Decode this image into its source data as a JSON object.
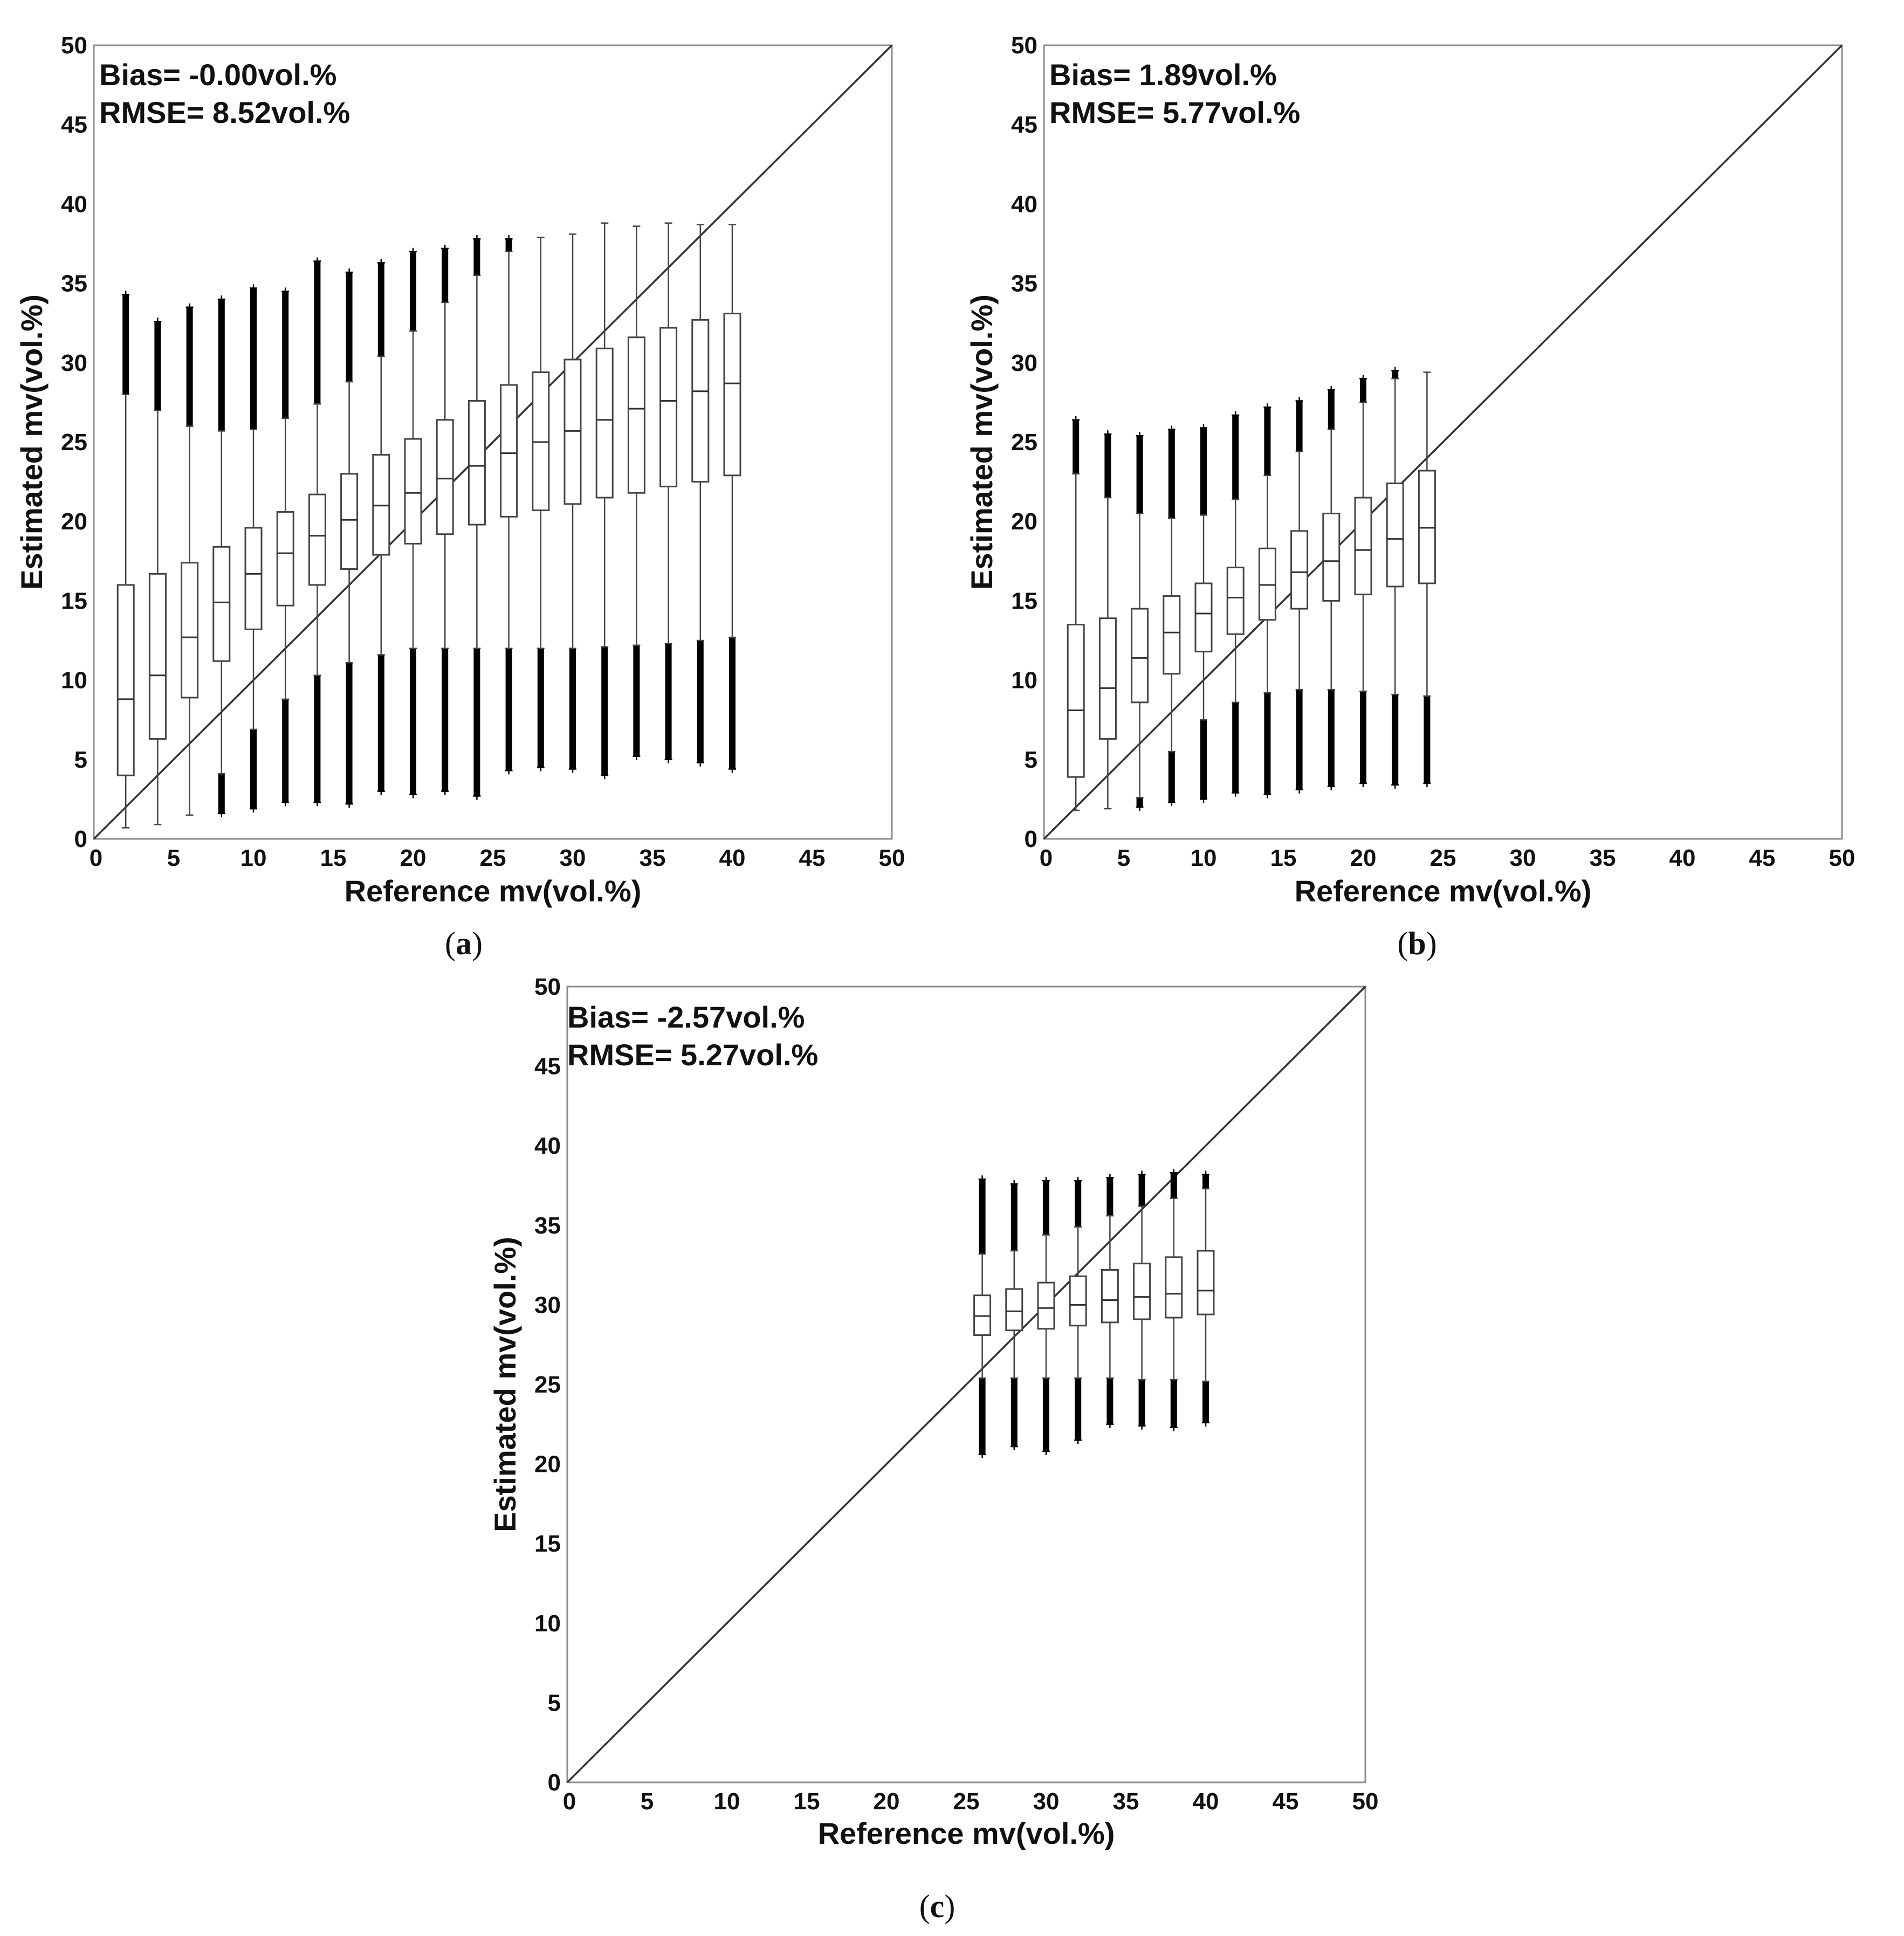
{
  "figure": {
    "panels": [
      {
        "id": "a",
        "caption_letter": "a",
        "caption_open": "(",
        "caption_close": ")",
        "bias_text": "Bias= -0.00vol.%",
        "rmse_text": "RMSE= 8.52vol.%"
      },
      {
        "id": "b",
        "caption_letter": "b",
        "caption_open": "(",
        "caption_close": ")",
        "bias_text": "Bias= 1.89vol.%",
        "rmse_text": "RMSE= 5.77vol.%"
      },
      {
        "id": "c",
        "caption_letter": "c",
        "caption_open": "(",
        "caption_close": ")",
        "bias_text": "Bias= -2.57vol.%",
        "rmse_text": "RMSE= 5.27vol.%"
      }
    ]
  },
  "chart_data": [
    {
      "type": "boxplot",
      "panel": "a",
      "xlabel": "Reference mv(vol.%)",
      "ylabel": "Estimated mv(vol.%)",
      "xlim": [
        0,
        50
      ],
      "ylim": [
        0,
        50
      ],
      "xticks": [
        0,
        5,
        10,
        15,
        20,
        25,
        30,
        35,
        40,
        45,
        50
      ],
      "yticks": [
        0,
        5,
        10,
        15,
        20,
        25,
        30,
        35,
        40,
        45,
        50
      ],
      "reference_line": "1:1",
      "boxes": [
        {
          "x": 2,
          "q1": 4.0,
          "median": 8.8,
          "q3": 16.0,
          "wlo": 0.7,
          "whi": 28.0,
          "out_hi": [
            28.0,
            34.3
          ],
          "out_lo": null
        },
        {
          "x": 4,
          "q1": 6.3,
          "median": 10.3,
          "q3": 16.7,
          "wlo": 0.9,
          "whi": 27.0,
          "out_hi": [
            27.0,
            32.6
          ],
          "out_lo": null
        },
        {
          "x": 6,
          "q1": 8.9,
          "median": 12.7,
          "q3": 17.4,
          "wlo": 1.5,
          "whi": 26.0,
          "out_hi": [
            26.0,
            33.5
          ],
          "out_lo": null
        },
        {
          "x": 8,
          "q1": 11.2,
          "median": 14.9,
          "q3": 18.4,
          "wlo": 4.1,
          "whi": 25.7,
          "out_hi": [
            25.7,
            34.0
          ],
          "out_lo": [
            1.6,
            4.1
          ]
        },
        {
          "x": 10,
          "q1": 13.2,
          "median": 16.7,
          "q3": 19.6,
          "wlo": 6.9,
          "whi": 25.8,
          "out_hi": [
            25.8,
            34.7
          ],
          "out_lo": [
            1.9,
            6.9
          ]
        },
        {
          "x": 12,
          "q1": 14.7,
          "median": 18.0,
          "q3": 20.6,
          "wlo": 8.8,
          "whi": 26.5,
          "out_hi": [
            26.5,
            34.5
          ],
          "out_lo": [
            2.3,
            8.8
          ]
        },
        {
          "x": 14,
          "q1": 16.0,
          "median": 19.1,
          "q3": 21.7,
          "wlo": 10.3,
          "whi": 27.4,
          "out_hi": [
            27.4,
            36.4
          ],
          "out_lo": [
            2.3,
            10.3
          ]
        },
        {
          "x": 16,
          "q1": 17.0,
          "median": 20.1,
          "q3": 23.0,
          "wlo": 11.1,
          "whi": 28.8,
          "out_hi": [
            28.8,
            35.7
          ],
          "out_lo": [
            2.2,
            11.1
          ]
        },
        {
          "x": 18,
          "q1": 17.9,
          "median": 21.0,
          "q3": 24.2,
          "wlo": 11.6,
          "whi": 30.4,
          "out_hi": [
            30.4,
            36.3
          ],
          "out_lo": [
            3.0,
            11.6
          ]
        },
        {
          "x": 20,
          "q1": 18.6,
          "median": 21.8,
          "q3": 25.2,
          "wlo": 12.0,
          "whi": 32.0,
          "out_hi": [
            32.0,
            37.0
          ],
          "out_lo": [
            2.8,
            12.0
          ]
        },
        {
          "x": 22,
          "q1": 19.2,
          "median": 22.7,
          "q3": 26.4,
          "wlo": 12.0,
          "whi": 33.8,
          "out_hi": [
            33.8,
            37.2
          ],
          "out_lo": [
            3.0,
            12.0
          ]
        },
        {
          "x": 24,
          "q1": 19.8,
          "median": 23.5,
          "q3": 27.6,
          "wlo": 12.0,
          "whi": 35.5,
          "out_hi": [
            35.5,
            37.8
          ],
          "out_lo": [
            2.7,
            12.0
          ]
        },
        {
          "x": 26,
          "q1": 20.3,
          "median": 24.3,
          "q3": 28.6,
          "wlo": 12.0,
          "whi": 37.0,
          "out_hi": [
            37.0,
            37.8
          ],
          "out_lo": [
            4.3,
            12.0
          ]
        },
        {
          "x": 28,
          "q1": 20.7,
          "median": 25.0,
          "q3": 29.4,
          "wlo": 12.0,
          "whi": 37.9,
          "out_hi": null,
          "out_lo": [
            4.5,
            12.0
          ]
        },
        {
          "x": 30,
          "q1": 21.1,
          "median": 25.7,
          "q3": 30.2,
          "wlo": 12.0,
          "whi": 38.1,
          "out_hi": null,
          "out_lo": [
            4.4,
            12.0
          ]
        },
        {
          "x": 32,
          "q1": 21.5,
          "median": 26.4,
          "q3": 30.9,
          "wlo": 12.1,
          "whi": 38.8,
          "out_hi": null,
          "out_lo": [
            4.0,
            12.1
          ]
        },
        {
          "x": 34,
          "q1": 21.8,
          "median": 27.1,
          "q3": 31.6,
          "wlo": 12.2,
          "whi": 38.6,
          "out_hi": null,
          "out_lo": [
            5.2,
            12.2
          ]
        },
        {
          "x": 36,
          "q1": 22.2,
          "median": 27.6,
          "q3": 32.2,
          "wlo": 12.3,
          "whi": 38.8,
          "out_hi": null,
          "out_lo": [
            5.0,
            12.3
          ]
        },
        {
          "x": 38,
          "q1": 22.5,
          "median": 28.2,
          "q3": 32.7,
          "wlo": 12.5,
          "whi": 38.7,
          "out_hi": null,
          "out_lo": [
            4.8,
            12.5
          ]
        },
        {
          "x": 40,
          "q1": 22.9,
          "median": 28.7,
          "q3": 33.1,
          "wlo": 12.7,
          "whi": 38.7,
          "out_hi": null,
          "out_lo": [
            4.4,
            12.7
          ]
        }
      ]
    },
    {
      "type": "boxplot",
      "panel": "b",
      "xlabel": "Reference mv(vol.%)",
      "ylabel": "Estimated mv(vol.%)",
      "xlim": [
        0,
        50
      ],
      "ylim": [
        0,
        50
      ],
      "xticks": [
        0,
        5,
        10,
        15,
        20,
        25,
        30,
        35,
        40,
        45,
        50
      ],
      "yticks": [
        0,
        5,
        10,
        15,
        20,
        25,
        30,
        35,
        40,
        45,
        50
      ],
      "reference_line": "1:1",
      "boxes": [
        {
          "x": 2,
          "q1": 3.9,
          "median": 8.1,
          "q3": 13.5,
          "wlo": 1.8,
          "whi": 23.0,
          "out_hi": [
            23.0,
            26.4
          ],
          "out_lo": null
        },
        {
          "x": 4,
          "q1": 6.3,
          "median": 9.5,
          "q3": 13.9,
          "wlo": 1.9,
          "whi": 21.5,
          "out_hi": [
            21.5,
            25.5
          ],
          "out_lo": null
        },
        {
          "x": 6,
          "q1": 8.6,
          "median": 11.4,
          "q3": 14.5,
          "wlo": 2.6,
          "whi": 20.5,
          "out_hi": [
            20.5,
            25.4
          ],
          "out_lo": [
            2.0,
            2.6
          ]
        },
        {
          "x": 8,
          "q1": 10.4,
          "median": 13.0,
          "q3": 15.3,
          "wlo": 5.5,
          "whi": 20.2,
          "out_hi": [
            20.2,
            25.8
          ],
          "out_lo": [
            2.3,
            5.5
          ]
        },
        {
          "x": 10,
          "q1": 11.8,
          "median": 14.2,
          "q3": 16.1,
          "wlo": 7.5,
          "whi": 20.4,
          "out_hi": [
            20.4,
            25.9
          ],
          "out_lo": [
            2.5,
            7.5
          ]
        },
        {
          "x": 12,
          "q1": 12.9,
          "median": 15.2,
          "q3": 17.1,
          "wlo": 8.6,
          "whi": 21.4,
          "out_hi": [
            21.4,
            26.7
          ],
          "out_lo": [
            2.9,
            8.6
          ]
        },
        {
          "x": 14,
          "q1": 13.8,
          "median": 16.0,
          "q3": 18.3,
          "wlo": 9.2,
          "whi": 22.9,
          "out_hi": [
            22.9,
            27.2
          ],
          "out_lo": [
            2.8,
            9.2
          ]
        },
        {
          "x": 16,
          "q1": 14.5,
          "median": 16.8,
          "q3": 19.4,
          "wlo": 9.4,
          "whi": 24.4,
          "out_hi": [
            24.4,
            27.6
          ],
          "out_lo": [
            3.1,
            9.4
          ]
        },
        {
          "x": 18,
          "q1": 15.0,
          "median": 17.5,
          "q3": 20.5,
          "wlo": 9.4,
          "whi": 25.8,
          "out_hi": [
            25.8,
            28.3
          ],
          "out_lo": [
            3.3,
            9.4
          ]
        },
        {
          "x": 20,
          "q1": 15.4,
          "median": 18.2,
          "q3": 21.5,
          "wlo": 9.3,
          "whi": 27.5,
          "out_hi": [
            27.5,
            29.0
          ],
          "out_lo": [
            3.5,
            9.3
          ]
        },
        {
          "x": 22,
          "q1": 15.9,
          "median": 18.9,
          "q3": 22.4,
          "wlo": 9.1,
          "whi": 29.0,
          "out_hi": [
            29.0,
            29.5
          ],
          "out_lo": [
            3.4,
            9.1
          ]
        },
        {
          "x": 24,
          "q1": 16.1,
          "median": 19.6,
          "q3": 23.2,
          "wlo": 9.0,
          "whi": 29.4,
          "out_hi": null,
          "out_lo": [
            3.5,
            9.0
          ]
        }
      ]
    },
    {
      "type": "boxplot",
      "panel": "c",
      "xlabel": "Reference mv(vol.%)",
      "ylabel": "Estimated mv(vol.%)",
      "xlim": [
        0,
        50
      ],
      "ylim": [
        0,
        50
      ],
      "xticks": [
        0,
        5,
        10,
        15,
        20,
        25,
        30,
        35,
        40,
        45,
        50
      ],
      "yticks": [
        0,
        5,
        10,
        15,
        20,
        25,
        30,
        35,
        40,
        45,
        50
      ],
      "reference_line": "1:1",
      "boxes": [
        {
          "x": 26,
          "q1": 28.1,
          "median": 29.3,
          "q3": 30.6,
          "wlo": 25.4,
          "whi": 33.2,
          "out_hi": [
            33.2,
            37.9
          ],
          "out_lo": [
            20.6,
            25.4
          ]
        },
        {
          "x": 28,
          "q1": 28.4,
          "median": 29.6,
          "q3": 31.0,
          "wlo": 25.4,
          "whi": 33.4,
          "out_hi": [
            33.4,
            37.6
          ],
          "out_lo": [
            21.1,
            25.4
          ]
        },
        {
          "x": 30,
          "q1": 28.5,
          "median": 29.8,
          "q3": 31.4,
          "wlo": 25.4,
          "whi": 34.4,
          "out_hi": [
            34.4,
            37.8
          ],
          "out_lo": [
            20.8,
            25.4
          ]
        },
        {
          "x": 32,
          "q1": 28.7,
          "median": 30.0,
          "q3": 31.8,
          "wlo": 25.4,
          "whi": 34.9,
          "out_hi": [
            34.9,
            37.8
          ],
          "out_lo": [
            21.5,
            25.4
          ]
        },
        {
          "x": 34,
          "q1": 28.9,
          "median": 30.3,
          "q3": 32.2,
          "wlo": 25.4,
          "whi": 35.6,
          "out_hi": [
            35.6,
            38.0
          ],
          "out_lo": [
            22.5,
            25.4
          ]
        },
        {
          "x": 36,
          "q1": 29.1,
          "median": 30.5,
          "q3": 32.6,
          "wlo": 25.3,
          "whi": 36.2,
          "out_hi": [
            36.2,
            38.2
          ],
          "out_lo": [
            22.4,
            25.3
          ]
        },
        {
          "x": 38,
          "q1": 29.2,
          "median": 30.7,
          "q3": 33.0,
          "wlo": 25.3,
          "whi": 36.7,
          "out_hi": [
            36.7,
            38.3
          ],
          "out_lo": [
            22.3,
            25.3
          ]
        },
        {
          "x": 40,
          "q1": 29.4,
          "median": 30.9,
          "q3": 33.4,
          "wlo": 25.2,
          "whi": 37.3,
          "out_hi": [
            37.3,
            38.2
          ],
          "out_lo": [
            22.6,
            25.2
          ]
        }
      ]
    }
  ]
}
